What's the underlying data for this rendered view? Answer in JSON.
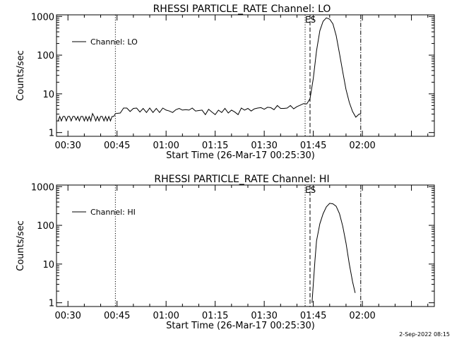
{
  "footer": {
    "date_stamp": "2-Sep-2022 08:15"
  },
  "chart_data": [
    {
      "type": "line",
      "title": "RHESSI PARTICLE_RATE Channel: LO",
      "xlabel": "Start Time (26-Mar-17 00:25:30)",
      "ylabel": "Counts/sec",
      "y_scale": "log",
      "xlim_minutes": [
        -3.5,
        112
      ],
      "ylim": [
        0.8,
        1100
      ],
      "x_ticks": [
        {
          "min": 0,
          "label": "00:30"
        },
        {
          "min": 15,
          "label": "00:45"
        },
        {
          "min": 30,
          "label": "01:00"
        },
        {
          "min": 45,
          "label": "01:15"
        },
        {
          "min": 60,
          "label": "01:30"
        },
        {
          "min": 75,
          "label": "01:45"
        },
        {
          "min": 90,
          "label": "02:00"
        }
      ],
      "y_ticks": [
        {
          "value": 1,
          "label": "1"
        },
        {
          "value": 10,
          "label": "10"
        },
        {
          "value": 100,
          "label": "100"
        },
        {
          "value": 1000,
          "label": "1000"
        }
      ],
      "legend": "Channel: LO",
      "markers": [
        {
          "min": 14.5,
          "style": "dotted"
        },
        {
          "min": 72.5,
          "style": "dotted"
        },
        {
          "min": 74.0,
          "style": "dashed",
          "label": "ES"
        },
        {
          "min": 89.5,
          "style": "dashdot"
        }
      ],
      "series": [
        {
          "name": "Channel: LO",
          "x": [
            -3.0,
            -2.5,
            -2.0,
            -1.5,
            -1.0,
            -0.5,
            0.0,
            0.5,
            1.0,
            1.5,
            2.0,
            2.5,
            3.0,
            3.5,
            4.0,
            4.5,
            5.0,
            5.5,
            6.0,
            6.5,
            7.0,
            7.5,
            8.0,
            8.5,
            9.0,
            9.5,
            10.0,
            10.5,
            11.0,
            11.5,
            12.0,
            12.5,
            13.0,
            13.5,
            14.0,
            14.5,
            16.0,
            17.0,
            18.0,
            19.0,
            20.0,
            21.0,
            22.0,
            23.0,
            24.0,
            25.0,
            26.0,
            27.0,
            28.0,
            29.0,
            30.0,
            31.0,
            32.0,
            33.0,
            34.0,
            35.0,
            36.0,
            37.0,
            38.0,
            39.0,
            40.0,
            41.0,
            42.0,
            43.0,
            44.0,
            45.0,
            46.0,
            47.0,
            48.0,
            49.0,
            50.0,
            51.0,
            52.0,
            53.0,
            54.0,
            55.0,
            56.0,
            57.0,
            58.0,
            59.0,
            60.0,
            61.0,
            62.0,
            63.0,
            64.0,
            65.0,
            66.0,
            67.0,
            68.0,
            69.0,
            70.0,
            71.0,
            72.0,
            73.0,
            74.0,
            75.0,
            76.0,
            77.0,
            78.0,
            79.0,
            80.0,
            81.0,
            82.0,
            83.0,
            84.0,
            85.0,
            86.0,
            87.0,
            88.0,
            89.0,
            89.5
          ],
          "values": [
            2.0,
            2.6,
            2.0,
            2.6,
            2.6,
            2.0,
            2.6,
            2.6,
            2.0,
            2.6,
            2.6,
            2.1,
            2.6,
            2.0,
            2.6,
            2.6,
            2.0,
            2.6,
            2.0,
            2.6,
            2.0,
            3.1,
            2.6,
            2.0,
            2.6,
            2.0,
            2.6,
            2.6,
            2.0,
            2.6,
            2.0,
            2.6,
            2.0,
            2.6,
            2.6,
            3.1,
            3.2,
            4.3,
            4.3,
            3.5,
            4.2,
            4.3,
            3.4,
            4.2,
            3.3,
            4.3,
            3.3,
            4.2,
            3.3,
            4.3,
            3.8,
            3.6,
            3.3,
            3.9,
            4.2,
            3.8,
            3.9,
            3.8,
            4.3,
            3.6,
            3.7,
            3.8,
            2.9,
            4.0,
            3.4,
            2.9,
            3.8,
            3.3,
            4.2,
            3.2,
            3.8,
            3.4,
            2.9,
            4.3,
            3.8,
            4.2,
            3.6,
            4.1,
            4.3,
            4.4,
            4.0,
            4.5,
            4.4,
            3.9,
            5.0,
            4.2,
            4.2,
            4.3,
            5.0,
            4.1,
            4.7,
            5.1,
            5.6,
            5.5,
            7.5,
            25,
            130,
            430,
            750,
            920,
            850,
            640,
            320,
            110,
            37,
            13,
            6,
            3.5,
            2.5,
            3.0,
            3.0
          ]
        }
      ]
    },
    {
      "type": "line",
      "title": "RHESSI PARTICLE_RATE Channel: HI",
      "xlabel": "Start Time (26-Mar-17 00:25:30)",
      "ylabel": "Counts/sec",
      "y_scale": "log",
      "xlim_minutes": [
        -3.5,
        112
      ],
      "ylim": [
        0.8,
        1100
      ],
      "x_ticks": [
        {
          "min": 0,
          "label": "00:30"
        },
        {
          "min": 15,
          "label": "00:45"
        },
        {
          "min": 30,
          "label": "01:00"
        },
        {
          "min": 45,
          "label": "01:15"
        },
        {
          "min": 60,
          "label": "01:30"
        },
        {
          "min": 75,
          "label": "01:45"
        },
        {
          "min": 90,
          "label": "02:00"
        }
      ],
      "y_ticks": [
        {
          "value": 1,
          "label": "1"
        },
        {
          "value": 10,
          "label": "10"
        },
        {
          "value": 100,
          "label": "100"
        },
        {
          "value": 1000,
          "label": "1000"
        }
      ],
      "legend": "Channel: HI",
      "markers": [
        {
          "min": 14.5,
          "style": "dotted"
        },
        {
          "min": 72.5,
          "style": "dotted"
        },
        {
          "min": 74.0,
          "style": "dashed",
          "label": "ES"
        },
        {
          "min": 89.5,
          "style": "dashdot"
        }
      ],
      "series": [
        {
          "name": "Channel: HI",
          "x": [
            74.6,
            75.0,
            75.5,
            76.0,
            77.0,
            78.0,
            79.0,
            80.0,
            81.0,
            82.0,
            83.0,
            84.0,
            85.0,
            86.0,
            87.0,
            87.8
          ],
          "values": [
            1.0,
            3,
            12,
            40,
            110,
            200,
            300,
            370,
            360,
            310,
            200,
            95,
            35,
            10,
            3.5,
            1.8
          ]
        }
      ]
    }
  ]
}
